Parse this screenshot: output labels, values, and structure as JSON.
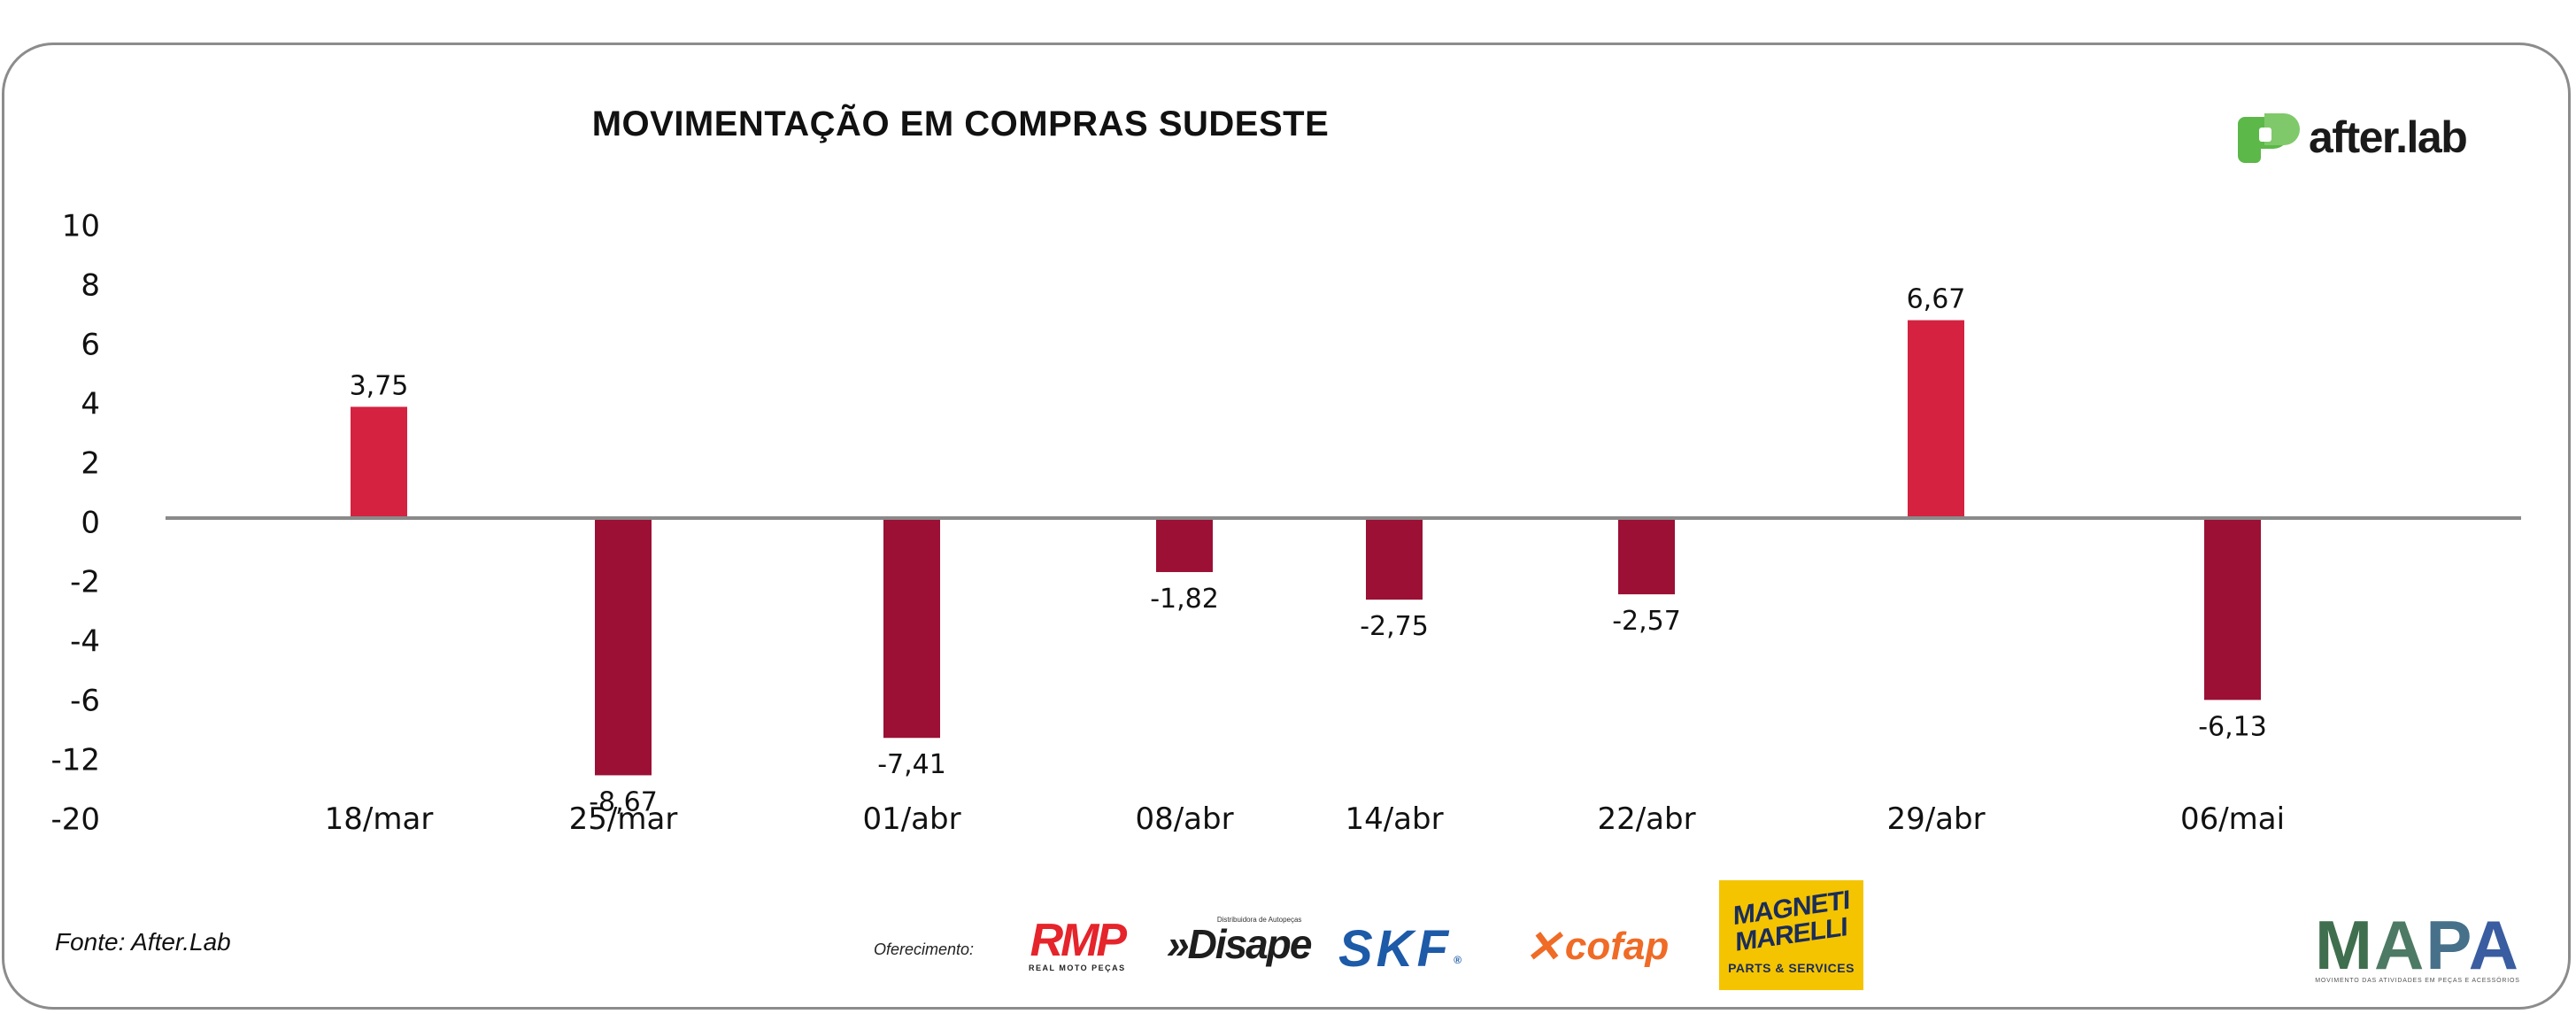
{
  "header": {
    "title": "MOVIMENTAÇÃO EM COMPRAS SUDESTE",
    "brand": "after.lab"
  },
  "chart_data": {
    "type": "bar",
    "title": "MOVIMENTAÇÃO EM COMPRAS SUDESTE",
    "categories": [
      "18/mar",
      "25/mar",
      "01/abr",
      "08/abr",
      "14/abr",
      "22/abr",
      "29/abr",
      "06/mai"
    ],
    "values": [
      3.75,
      -8.67,
      -7.41,
      -1.82,
      -2.75,
      -2.57,
      6.67,
      -6.13
    ],
    "value_labels": [
      "3,75",
      "-8,67",
      "-7,41",
      "-1,82",
      "-2,75",
      "-2,57",
      "6,67",
      "-6,13"
    ],
    "y_tick_labels": [
      "10",
      "8",
      "6",
      "4",
      "2",
      "0",
      "-2",
      "-4",
      "-6",
      "-12",
      "-20"
    ],
    "xlabel": "",
    "ylabel": "",
    "grid": false,
    "legend": "none",
    "colors": {
      "positive": "#d42240",
      "negative": "#9b1034",
      "baseline": "#8a8a8a"
    }
  },
  "footer": {
    "source": "Fonte: After.Lab",
    "sponsor_label": "Oferecimento:",
    "sponsors": {
      "rmp": "RMP",
      "rmp_sub": "REAL MOTO PEÇAS",
      "disape": "»Disape",
      "disape_sub": "Distribuidora de Autopeças",
      "skf": "SKF",
      "skf_reg": "®",
      "cofap": "cofap",
      "mm_main": "MAGNETI MARELLI",
      "mm_sub": "PARTS & SERVICES",
      "mapa": "MAPA",
      "mapa_sub": "MOVIMENTO DAS ATIVIDADES EM PEÇAS E ACESSÓRIOS"
    },
    "colors": {
      "brand_green": "#5cb848",
      "mm_yellow": "#f5c400",
      "rmp_red": "#e5242b",
      "skf_blue": "#1d5aa8",
      "cofap_orange": "#ef6b26"
    }
  }
}
